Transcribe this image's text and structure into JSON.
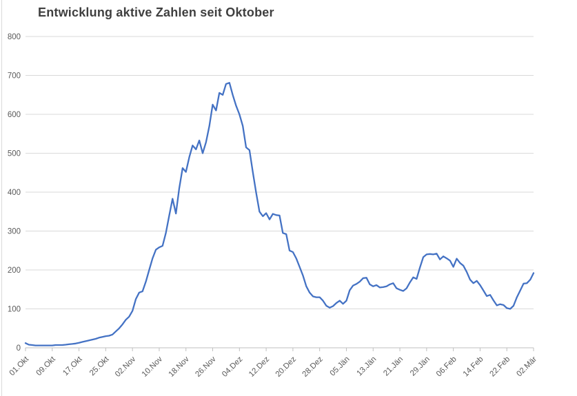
{
  "chart_data": {
    "type": "line",
    "title": "Entwicklung aktive Zahlen seit Oktober",
    "legend": "none",
    "grid": "horizontal",
    "series_color": "#4472C4",
    "grid_color": "#D9D9D9",
    "axis_color": "#BFBFBF",
    "label_color": "#595959",
    "title_color": "#3F3F3F",
    "ylim": [
      0,
      800
    ],
    "ytick_step": 100,
    "yticks": [
      800,
      700,
      600,
      500,
      400,
      300,
      200,
      100,
      0
    ],
    "x_tick_labels": [
      "01.Okt",
      "09.Okt",
      "17.Okt",
      "25.Okt",
      "02.Nov",
      "10.Nov",
      "18.Nov",
      "26.Nov",
      "04.Dez",
      "12.Dez",
      "20.Dez",
      "28.Dez",
      "05.Jän",
      "13.Jän",
      "21.Jän",
      "29.Jän",
      "06.Feb",
      "14.Feb",
      "22.Feb",
      "02.Mär"
    ],
    "x_tick_interval_days": 8,
    "x_start_label": "01.Okt",
    "x_end_label": "02.Mär",
    "values": [
      12,
      8,
      7,
      6,
      6,
      6,
      6,
      6,
      6,
      7,
      7,
      7,
      8,
      9,
      10,
      11,
      13,
      15,
      17,
      19,
      21,
      23,
      26,
      28,
      30,
      31,
      34,
      42,
      50,
      60,
      72,
      80,
      95,
      125,
      142,
      145,
      170,
      200,
      230,
      252,
      258,
      262,
      295,
      340,
      383,
      345,
      410,
      462,
      452,
      490,
      520,
      510,
      533,
      500,
      528,
      570,
      625,
      610,
      655,
      650,
      678,
      681,
      650,
      622,
      600,
      570,
      515,
      508,
      452,
      398,
      350,
      338,
      346,
      330,
      344,
      341,
      340,
      295,
      292,
      250,
      246,
      230,
      208,
      186,
      158,
      142,
      132,
      130,
      130,
      121,
      108,
      103,
      107,
      115,
      121,
      113,
      121,
      148,
      160,
      164,
      170,
      179,
      180,
      163,
      158,
      161,
      155,
      156,
      158,
      163,
      166,
      153,
      149,
      146,
      153,
      168,
      181,
      177,
      206,
      233,
      240,
      241,
      240,
      242,
      227,
      235,
      230,
      224,
      208,
      229,
      218,
      211,
      195,
      175,
      166,
      172,
      161,
      147,
      133,
      136,
      122,
      109,
      112,
      110,
      102,
      100,
      108,
      130,
      147,
      165,
      166,
      175,
      192
    ]
  }
}
